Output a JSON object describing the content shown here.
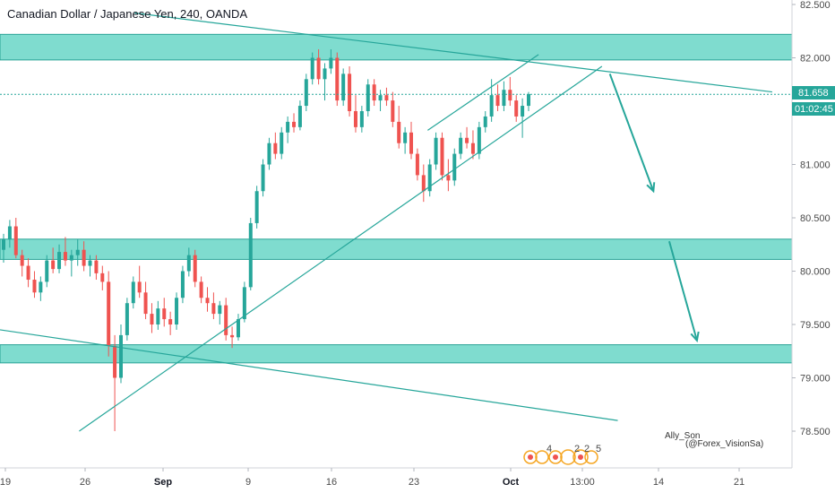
{
  "chart_data": {
    "type": "candlestick",
    "title": "Canadian Dollar / Japanese Yen, 240, OANDA",
    "y_ticks": [
      "82.500",
      "82.000",
      "81.500",
      "81.000",
      "80.500",
      "80.000",
      "79.500",
      "79.000",
      "78.500"
    ],
    "y_tick_values": [
      82.5,
      82.0,
      81.5,
      81.0,
      80.5,
      80.0,
      79.5,
      79.0,
      78.5
    ],
    "ylim": [
      78.3,
      82.55
    ],
    "x_ticks": [
      {
        "label": "19",
        "bold": false
      },
      {
        "label": "26",
        "bold": false
      },
      {
        "label": "Sep",
        "bold": true
      },
      {
        "label": "9",
        "bold": false
      },
      {
        "label": "16",
        "bold": false
      },
      {
        "label": "23",
        "bold": false
      },
      {
        "label": "Oct",
        "bold": true
      },
      {
        "label": "13:00",
        "bold": false
      },
      {
        "label": "14",
        "bold": false
      },
      {
        "label": "21",
        "bold": false
      }
    ],
    "current_price": {
      "label": "81.658",
      "value": 81.658,
      "color": "#26a69a"
    },
    "countdown": "01:02:45",
    "colors": {
      "up": "#26a69a",
      "down": "#ef5350",
      "zone": "#7fdccf",
      "zone_border": "#2aa396",
      "line": "#26a69a"
    },
    "zones": [
      {
        "from": 81.98,
        "to": 82.22
      },
      {
        "from": 80.11,
        "to": 80.3
      },
      {
        "from": 79.14,
        "to": 79.31
      }
    ],
    "candles": [
      [
        80.2,
        80.35,
        80.08,
        80.3
      ],
      [
        80.3,
        80.48,
        80.22,
        80.42
      ],
      [
        80.42,
        80.5,
        80.12,
        80.15
      ],
      [
        80.15,
        80.2,
        79.95,
        80.05
      ],
      [
        80.05,
        80.12,
        79.85,
        79.92
      ],
      [
        79.92,
        80.0,
        79.75,
        79.8
      ],
      [
        79.8,
        79.95,
        79.72,
        79.9
      ],
      [
        79.9,
        80.15,
        79.85,
        80.1
      ],
      [
        80.1,
        80.22,
        79.98,
        80.02
      ],
      [
        80.02,
        80.25,
        79.98,
        80.18
      ],
      [
        80.18,
        80.32,
        80.05,
        80.1
      ],
      [
        80.1,
        80.2,
        79.95,
        80.15
      ],
      [
        80.15,
        80.3,
        80.05,
        80.2
      ],
      [
        80.2,
        80.28,
        80.0,
        80.05
      ],
      [
        80.05,
        80.15,
        79.95,
        80.1
      ],
      [
        80.1,
        80.15,
        79.92,
        79.98
      ],
      [
        79.98,
        80.05,
        79.82,
        79.9
      ],
      [
        79.9,
        80.0,
        79.2,
        79.3
      ],
      [
        79.3,
        79.4,
        78.5,
        79.0
      ],
      [
        79.0,
        79.5,
        78.95,
        79.4
      ],
      [
        79.4,
        79.75,
        79.35,
        79.7
      ],
      [
        79.7,
        79.95,
        79.65,
        79.9
      ],
      [
        79.9,
        80.05,
        79.75,
        79.8
      ],
      [
        79.8,
        79.9,
        79.55,
        79.6
      ],
      [
        79.6,
        79.7,
        79.42,
        79.5
      ],
      [
        79.5,
        79.72,
        79.45,
        79.65
      ],
      [
        79.65,
        79.75,
        79.48,
        79.55
      ],
      [
        79.55,
        79.62,
        79.4,
        79.5
      ],
      [
        79.5,
        79.8,
        79.45,
        79.75
      ],
      [
        79.75,
        80.05,
        79.7,
        80.0
      ],
      [
        80.0,
        80.22,
        79.95,
        80.15
      ],
      [
        80.15,
        80.2,
        79.85,
        79.9
      ],
      [
        79.9,
        79.95,
        79.7,
        79.75
      ],
      [
        79.75,
        79.85,
        79.62,
        79.7
      ],
      [
        79.7,
        79.8,
        79.55,
        79.6
      ],
      [
        79.6,
        79.72,
        79.5,
        79.68
      ],
      [
        79.68,
        79.75,
        79.35,
        79.4
      ],
      [
        79.4,
        79.48,
        79.28,
        79.38
      ],
      [
        79.38,
        79.6,
        79.35,
        79.55
      ],
      [
        79.55,
        79.9,
        79.52,
        79.85
      ],
      [
        79.85,
        80.5,
        79.82,
        80.45
      ],
      [
        80.45,
        80.8,
        80.4,
        80.75
      ],
      [
        80.75,
        81.05,
        80.7,
        81.0
      ],
      [
        81.0,
        81.25,
        80.95,
        81.2
      ],
      [
        81.2,
        81.3,
        81.05,
        81.1
      ],
      [
        81.1,
        81.35,
        81.05,
        81.3
      ],
      [
        81.3,
        81.45,
        81.2,
        81.4
      ],
      [
        81.4,
        81.48,
        81.3,
        81.35
      ],
      [
        81.35,
        81.6,
        81.32,
        81.55
      ],
      [
        81.55,
        81.85,
        81.5,
        81.8
      ],
      [
        81.8,
        82.05,
        81.75,
        82.0
      ],
      [
        82.0,
        82.08,
        81.75,
        81.8
      ],
      [
        81.8,
        81.95,
        81.6,
        81.9
      ],
      [
        81.9,
        82.08,
        81.85,
        82.0
      ],
      [
        82.0,
        82.05,
        81.55,
        81.6
      ],
      [
        81.6,
        81.9,
        81.55,
        81.85
      ],
      [
        81.85,
        81.92,
        81.45,
        81.5
      ],
      [
        81.5,
        81.65,
        81.3,
        81.35
      ],
      [
        81.35,
        81.55,
        81.3,
        81.5
      ],
      [
        81.5,
        81.8,
        81.45,
        81.75
      ],
      [
        81.75,
        81.8,
        81.55,
        81.6
      ],
      [
        81.6,
        81.7,
        81.5,
        81.65
      ],
      [
        81.65,
        81.72,
        81.55,
        81.6
      ],
      [
        81.6,
        81.68,
        81.35,
        81.4
      ],
      [
        81.4,
        81.55,
        81.15,
        81.2
      ],
      [
        81.2,
        81.35,
        81.1,
        81.3
      ],
      [
        81.3,
        81.4,
        81.05,
        81.1
      ],
      [
        81.1,
        81.15,
        80.85,
        80.9
      ],
      [
        80.9,
        81.0,
        80.65,
        80.75
      ],
      [
        80.75,
        81.05,
        80.7,
        81.0
      ],
      [
        81.0,
        81.3,
        80.95,
        81.25
      ],
      [
        81.25,
        81.3,
        80.85,
        80.9
      ],
      [
        80.9,
        81.05,
        80.75,
        80.85
      ],
      [
        80.85,
        81.15,
        80.8,
        81.1
      ],
      [
        81.1,
        81.3,
        81.05,
        81.25
      ],
      [
        81.25,
        81.35,
        81.15,
        81.2
      ],
      [
        81.2,
        81.32,
        81.05,
        81.1
      ],
      [
        81.1,
        81.4,
        81.05,
        81.35
      ],
      [
        81.35,
        81.5,
        81.3,
        81.45
      ],
      [
        81.45,
        81.8,
        81.4,
        81.65
      ],
      [
        81.65,
        81.75,
        81.5,
        81.55
      ],
      [
        81.55,
        81.78,
        81.5,
        81.7
      ],
      [
        81.7,
        81.82,
        81.55,
        81.6
      ],
      [
        81.6,
        81.65,
        81.4,
        81.45
      ],
      [
        81.45,
        81.62,
        81.25,
        81.55
      ],
      [
        81.55,
        81.68,
        81.5,
        81.66
      ]
    ],
    "trendlines": [
      {
        "from": [
          0.17,
          82.42
        ],
        "to": [
          0.975,
          81.68
        ]
      },
      {
        "from": [
          0.0,
          79.45
        ],
        "to": [
          0.78,
          78.6
        ]
      },
      {
        "from": [
          0.1,
          78.5
        ],
        "to": [
          0.76,
          81.92
        ]
      },
      {
        "from": [
          0.54,
          81.32
        ],
        "to": [
          0.68,
          82.03
        ]
      }
    ],
    "arrows": [
      {
        "from": [
          0.77,
          81.85
        ],
        "to": [
          0.825,
          80.75
        ]
      },
      {
        "from": [
          0.845,
          80.28
        ],
        "to": [
          0.88,
          79.35
        ]
      }
    ],
    "author": [
      "Ally_Son",
      "(@Forex_VisionSa)"
    ],
    "footer_icons_text": [
      "4",
      "2",
      "2",
      "5"
    ]
  }
}
